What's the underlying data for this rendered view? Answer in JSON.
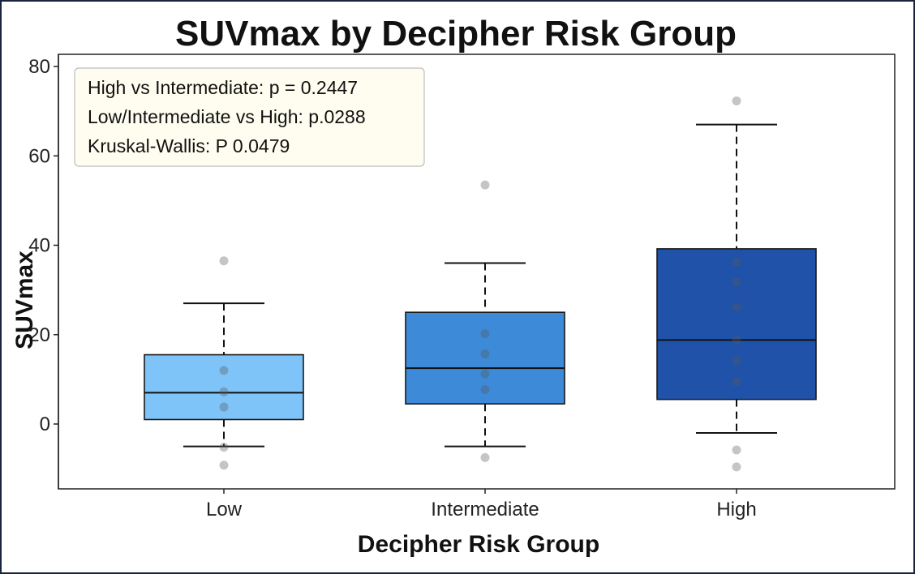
{
  "chart_data": {
    "type": "box",
    "title": "SUVmax by Decipher Risk Group",
    "xlabel": "Decipher Risk Group",
    "ylabel": "SUVmax",
    "ylim": [
      -14,
      82
    ],
    "yticks": [
      0,
      20,
      40,
      60,
      80
    ],
    "categories": [
      "Low",
      "Intermediate",
      "High"
    ],
    "colors": [
      "#7ec4f8",
      "#3d8ad8",
      "#1f52a8"
    ],
    "boxes": [
      {
        "category": "Low",
        "whisker_low": -5,
        "q1": 1,
        "median": 7,
        "q3": 15.5,
        "whisker_high": 27,
        "points": [
          36.5,
          12,
          7.2,
          3.8,
          -5.2,
          -9.2
        ]
      },
      {
        "category": "Intermediate",
        "whisker_low": -5,
        "q1": 4.5,
        "median": 12.5,
        "q3": 25,
        "whisker_high": 36,
        "points": [
          53.5,
          20.2,
          15.7,
          11.2,
          7.7,
          -7.5
        ]
      },
      {
        "category": "High",
        "whisker_low": -2,
        "q1": 5.5,
        "median": 18.8,
        "q3": 39.2,
        "whisker_high": 67,
        "points": [
          72.3,
          36.2,
          31.8,
          26.2,
          18.9,
          14.2,
          9.5,
          -5.8,
          -9.6
        ]
      }
    ],
    "annotations": [
      "High vs Intermediate: p = 0.2447",
      "Low/Intermediate vs High: p.0288",
      "Kruskal-Wallis: P 0.0479"
    ],
    "grid": false
  }
}
